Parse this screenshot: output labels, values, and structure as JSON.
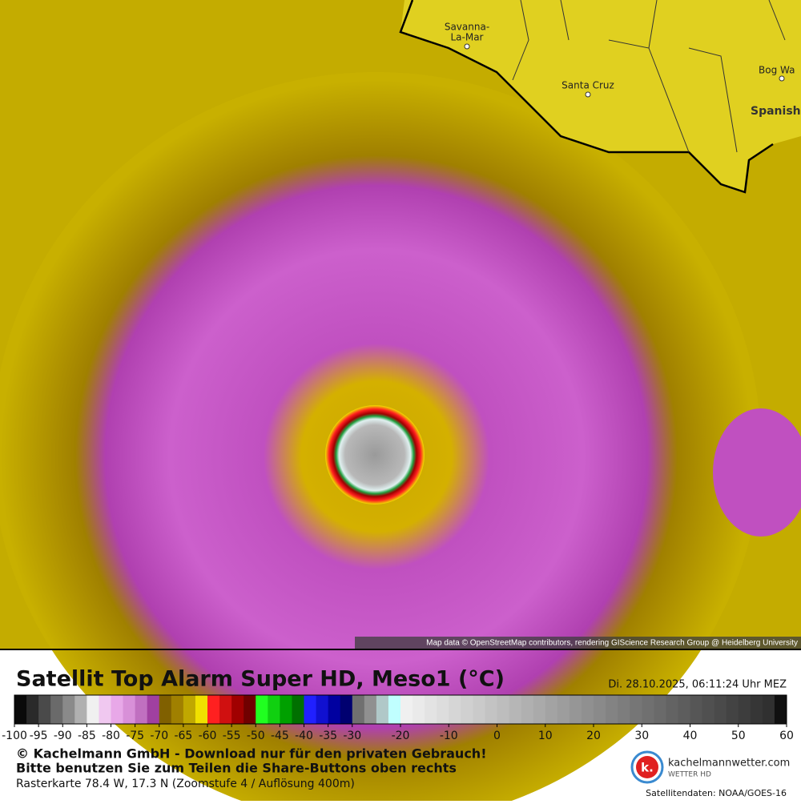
{
  "map": {
    "places": [
      {
        "label_lines": [
          "Savanna-",
          "La-Mar"
        ]
      },
      {
        "label_lines": [
          "Santa Cruz"
        ]
      },
      {
        "label_lines": [
          "Bog Wa"
        ]
      },
      {
        "label_lines": [
          "Spanish"
        ]
      }
    ],
    "attribution": "Map data © OpenStreetMap contributors, rendering GIScience Research Group @ Heidelberg University"
  },
  "legend": {
    "title": "Satellit Top Alarm Super HD, Meso1 (°C)",
    "timestamp": "Di. 28.10.2025, 06:11:24 Uhr MEZ",
    "range": [
      -100,
      60
    ],
    "ticks": [
      -100,
      -95,
      -90,
      -85,
      -80,
      -75,
      -70,
      -65,
      -60,
      -55,
      -50,
      -45,
      -40,
      -35,
      -30,
      -20,
      -10,
      0,
      10,
      20,
      30,
      40,
      50,
      60
    ],
    "colors": [
      "#0a0a0a",
      "#2a2a2a",
      "#4a4a4a",
      "#6a6a6a",
      "#8a8a8a",
      "#b0b0b0",
      "#f0f0f0",
      "#f0c8f0",
      "#e8a8e8",
      "#d890d8",
      "#c070c0",
      "#a040a0",
      "#806000",
      "#a08000",
      "#c0a800",
      "#f0e000",
      "#ff2020",
      "#d01010",
      "#a00000",
      "#700000",
      "#20ff20",
      "#10d010",
      "#00a000",
      "#007000",
      "#2020ff",
      "#1010d0",
      "#0000a0",
      "#000070",
      "#707070",
      "#909090",
      "#b0c8c8",
      "#c0ffff",
      "#f0f0f0",
      "#eaeaea",
      "#e3e3e3",
      "#dddddd",
      "#d6d6d6",
      "#d0d0d0",
      "#cacaca",
      "#c3c3c3",
      "#bdbdbd",
      "#b6b6b6",
      "#b0b0b0",
      "#aaaaaa",
      "#a3a3a3",
      "#9d9d9d",
      "#969696",
      "#909090",
      "#8a8a8a",
      "#838383",
      "#7d7d7d",
      "#767676",
      "#707070",
      "#6a6a6a",
      "#636363",
      "#5d5d5d",
      "#565656",
      "#505050",
      "#4a4a4a",
      "#434343",
      "#3d3d3d",
      "#363636",
      "#303030",
      "#101010"
    ]
  },
  "footer": {
    "copyright": "© Kachelmann GmbH - Download nur für den privaten Gebrauch!",
    "share": "Bitte benutzen Sie zum Teilen die Share-Buttons oben rechts",
    "raster": "Rasterkarte 78.4 W, 17.3 N (Zoomstufe 4 / Auflösung 400m)",
    "logo_mark": "k.",
    "brand": "kachelmannwetter.com",
    "brand_sub": "WETTER HD",
    "source": "Satellitendaten: NOAA/GOES-16"
  }
}
